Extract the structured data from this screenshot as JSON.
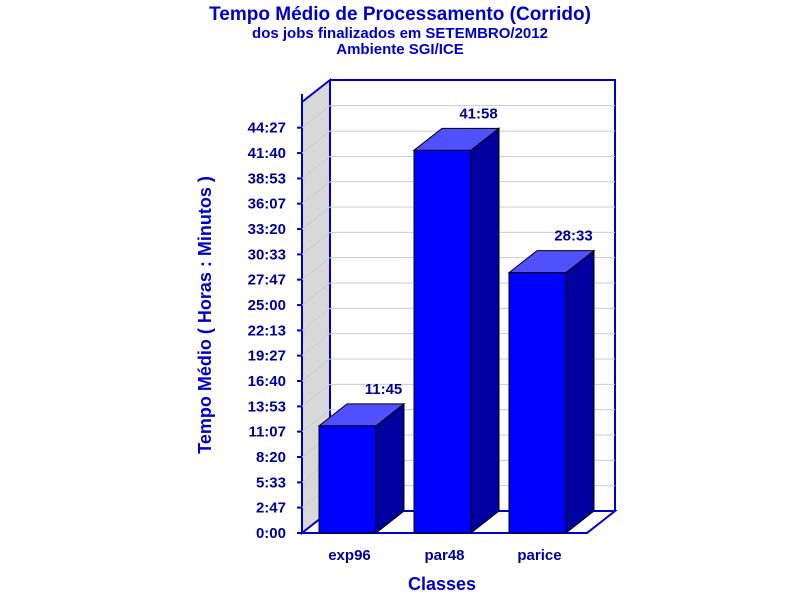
{
  "chart_data": {
    "type": "bar",
    "title": "Tempo Médio de Processamento (Corrido)",
    "subtitle_1": "dos jobs finalizados em SETEMBRO/2012",
    "subtitle_2": "Ambiente SGI/ICE",
    "xlabel": "Classes",
    "ylabel": "Tempo Médio ( Horas : Minutos )",
    "categories": [
      "exp96",
      "par48",
      "parice"
    ],
    "values_minutes": [
      705,
      2518,
      1713
    ],
    "data_labels": [
      "11:45",
      "41:58",
      "28:33"
    ],
    "ylim_minutes": [
      0,
      2836
    ],
    "y_ticks_minutes": [
      0,
      167,
      333,
      500,
      667,
      833,
      1000,
      1167,
      1333,
      1500,
      1667,
      1833,
      2000,
      2167,
      2333,
      2500,
      2667
    ],
    "y_tick_labels": [
      "0:00",
      "2:47",
      "5:33",
      "8:20",
      "11:07",
      "13:53",
      "16:40",
      "19:27",
      "22:13",
      "25:00",
      "27:47",
      "30:33",
      "33:20",
      "36:07",
      "38:53",
      "41:40",
      "44:27"
    ],
    "grid": true,
    "colors": {
      "bar_front": "#0000ff",
      "bar_top": "#5050ff",
      "bar_side": "#0000a0",
      "frame": "#0000cc",
      "back_wall": "#d8d8d8",
      "grid": "#cccccc",
      "text": "#000099"
    }
  }
}
